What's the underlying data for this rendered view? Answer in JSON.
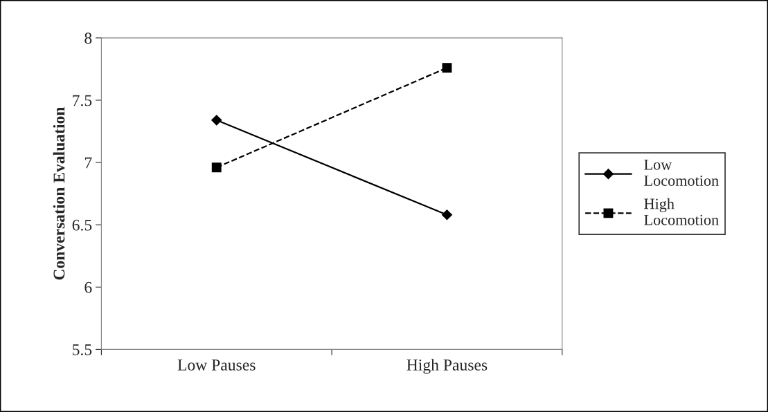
{
  "chart_data": {
    "type": "line",
    "ylabel": "Conversation Evaluation",
    "categories": [
      "Low Pauses",
      "High Pauses"
    ],
    "series": [
      {
        "name": "Low Locomotion",
        "color": "#000000",
        "values": [
          7.34,
          6.58
        ],
        "marker": "diamond",
        "line_style": "solid"
      },
      {
        "name": "High Locomotion",
        "color": "#000000",
        "values": [
          6.96,
          7.76
        ],
        "marker": "square",
        "line_style": "dashed"
      }
    ],
    "ylim": [
      5.5,
      8
    ],
    "yticks": [
      5.5,
      6,
      6.5,
      7,
      7.5,
      8
    ],
    "grid": false,
    "legend": "right"
  }
}
